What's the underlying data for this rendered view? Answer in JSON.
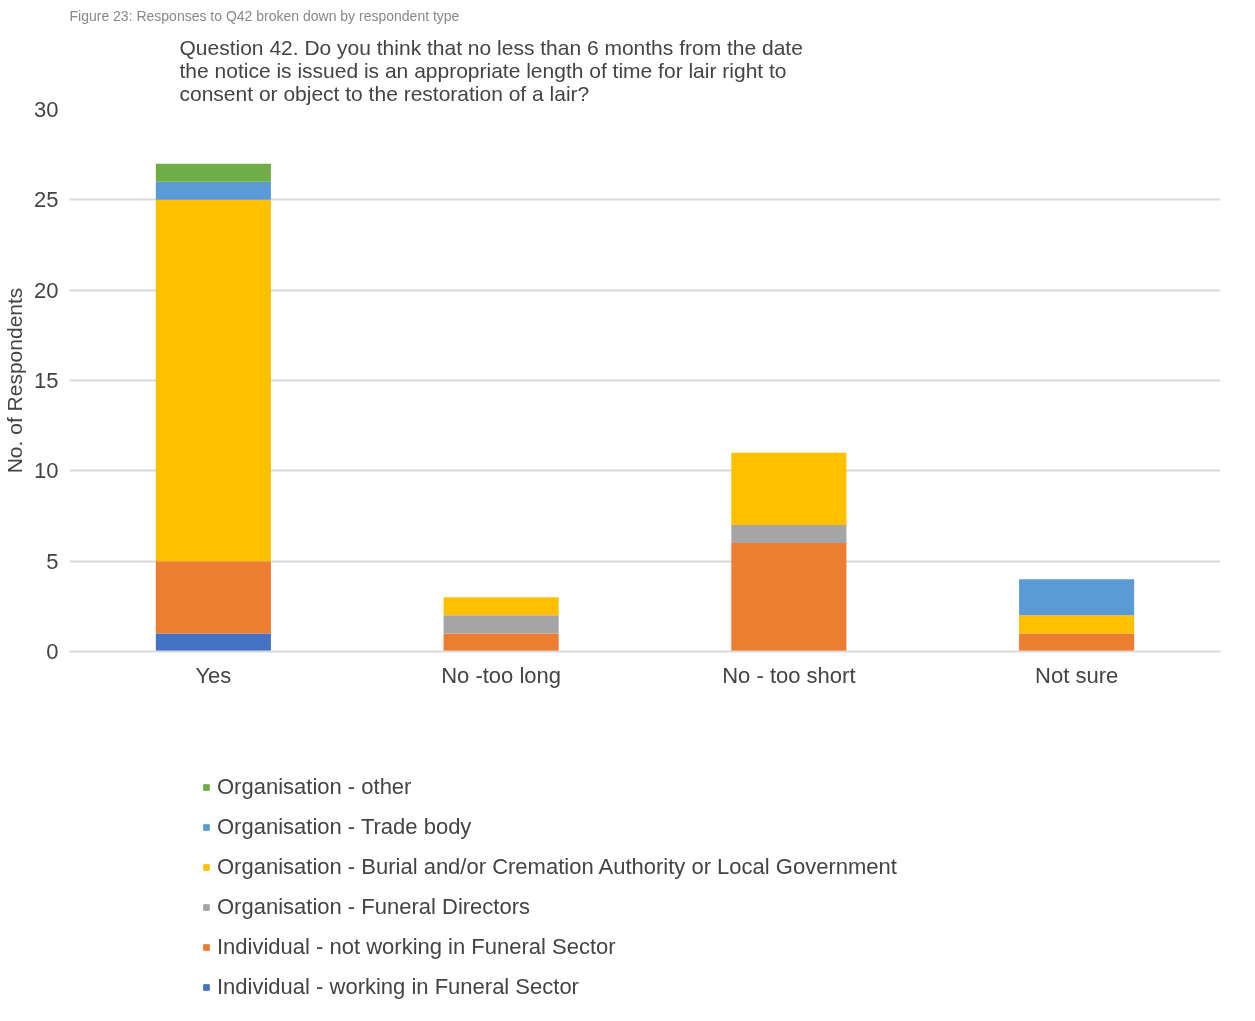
{
  "chart_data": {
    "type": "bar",
    "stacked": true,
    "title": "Question 42. Do you think that no less than 6 months from the date\nthe notice is issued is an appropriate length of time for lair right to\nconsent or object to the restoration of a lair?",
    "annotations": [
      "Figure 23: Responses to Q42 broken down by respondent type"
    ],
    "ylabel": "No. of Respondents",
    "categories": [
      "Yes",
      "No -too long",
      "No - too short",
      "Not sure"
    ],
    "series": [
      {
        "name": "Individual - working in Funeral Sector",
        "color": "#4472c4",
        "values": [
          1,
          0,
          0,
          0
        ]
      },
      {
        "name": "Individual - not working in Funeral Sector",
        "color": "#ed7d31",
        "values": [
          4,
          1,
          6,
          1
        ]
      },
      {
        "name": "Organisation - Funeral Directors",
        "color": "#a5a5a5",
        "values": [
          0,
          1,
          1,
          0
        ]
      },
      {
        "name": "Organisation - Burial and/or Cremation Authority or Local Government",
        "color": "#ffc000",
        "values": [
          20,
          1,
          4,
          1
        ]
      },
      {
        "name": "Organisation - Trade body",
        "color": "#5b9bd5",
        "values": [
          1,
          0,
          0,
          2
        ]
      },
      {
        "name": "Organisation - other",
        "color": "#70ad47",
        "values": [
          1,
          0,
          0,
          0
        ]
      }
    ],
    "ylim": [
      0,
      30
    ],
    "yticks": [
      0,
      5,
      10,
      15,
      20,
      25,
      30
    ],
    "grid": "y",
    "legend": "bottom"
  }
}
